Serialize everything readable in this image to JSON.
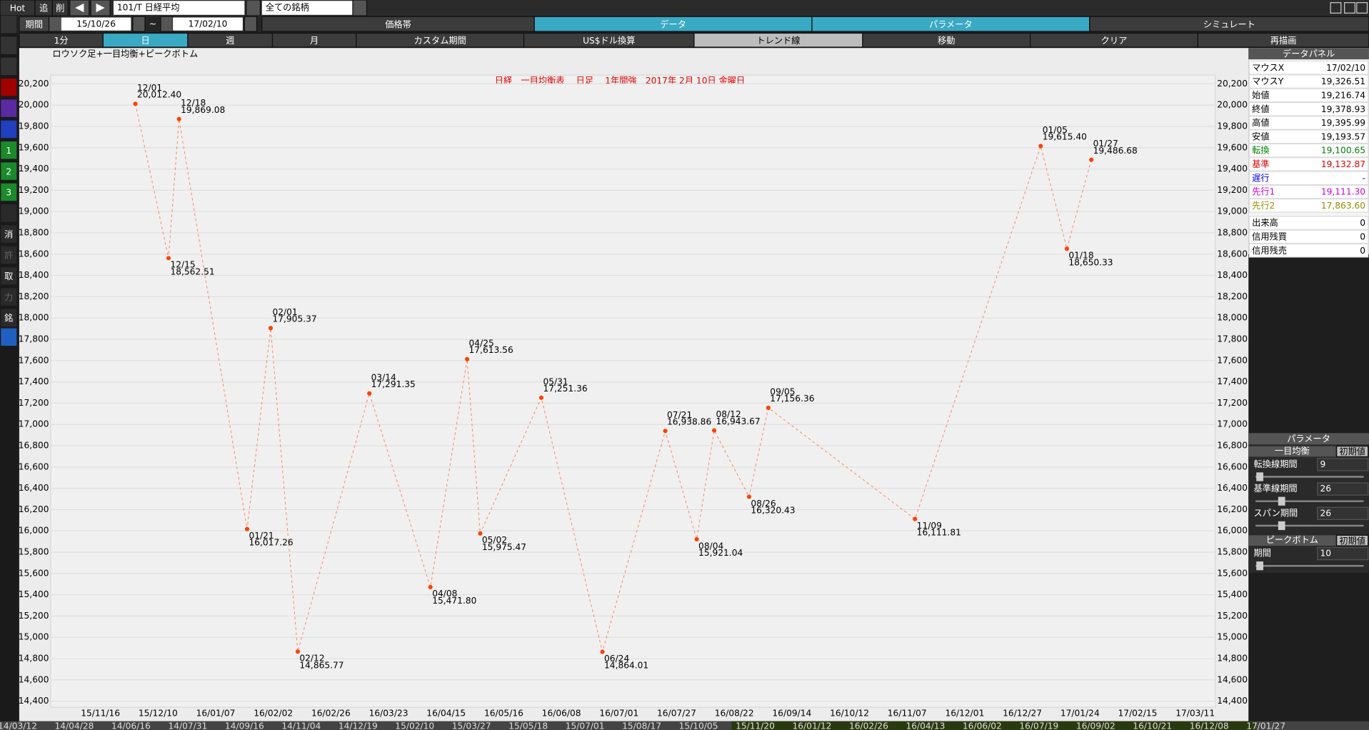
{
  "toolbar": {
    "hot": "Hot",
    "add": "追",
    "del": "削",
    "symbol": "101/T 日経平均",
    "filter": "全ての銘柄"
  },
  "period": {
    "label": "期間",
    "from": "15/10/26",
    "sep": "~",
    "to": "17/02/10"
  },
  "tabs": [
    "価格帯",
    "データ",
    "パラメータ",
    "シミュレート"
  ],
  "buttons": [
    "1分",
    "日",
    "週",
    "月",
    "カスタム期間",
    "US$ドル換算",
    "トレンド線",
    "移動",
    "クリア",
    "再描画"
  ],
  "sidebar": [
    "1",
    "2",
    "3",
    "消",
    "許",
    "取",
    "力",
    "銘"
  ],
  "chart_data": {
    "type": "line",
    "subtitle": "ロウソク足+一目均衡+ピークボトム",
    "title": "日経　一目均衡表　 日足　 1年間強　2017年 2月 10日 金曜日",
    "categories": [
      "12/01",
      "12/15",
      "12/18",
      "01/21",
      "02/01",
      "02/12",
      "03/14",
      "04/08",
      "04/25",
      "05/02",
      "05/31",
      "06/24",
      "07/21",
      "08/04",
      "08/12",
      "08/26",
      "09/05",
      "11/09",
      "01/05",
      "01/18",
      "01/27"
    ],
    "values": [
      20012.4,
      18562.51,
      19869.08,
      16017.26,
      17905.37,
      14865.77,
      17291.35,
      15471.8,
      17613.56,
      15975.47,
      17251.36,
      14864.01,
      16938.86,
      15921.04,
      16943.67,
      16320.43,
      17156.36,
      16111.81,
      19615.4,
      18650.33,
      19486.68
    ],
    "value_labels": [
      "20,012.40",
      "18,562.51",
      "19,869.08",
      "16,017.26",
      "17,905.37",
      "14,865.77",
      "17,291.35",
      "15,471.80",
      "17,613.56",
      "15,975.47",
      "17,251.36",
      "14,864.01",
      "16,938.86",
      "15,921.04",
      "16,943.67",
      "16,320.43",
      "17,156.36",
      "16,111.81",
      "19,615.40",
      "18,650.33",
      "19,486.68"
    ],
    "color": "#ff4000",
    "ylim": [
      14400,
      20200
    ],
    "yticks": [
      {
        "value": 14400,
        "label": "14,400"
      },
      {
        "value": 14600,
        "label": "14,600"
      },
      {
        "value": 14800,
        "label": "14,800"
      },
      {
        "value": 15000,
        "label": "15,000"
      },
      {
        "value": 15200,
        "label": "15,200"
      },
      {
        "value": 15400,
        "label": "15,400"
      },
      {
        "value": 15600,
        "label": "15,600"
      },
      {
        "value": 15800,
        "label": "15,800"
      },
      {
        "value": 16000,
        "label": "16,000"
      },
      {
        "value": 16200,
        "label": "16,200"
      },
      {
        "value": 16400,
        "label": "16,400"
      },
      {
        "value": 16600,
        "label": "16,600"
      },
      {
        "value": 16800,
        "label": "16,800"
      },
      {
        "value": 17000,
        "label": "17,000"
      },
      {
        "value": 17200,
        "label": "17,200"
      },
      {
        "value": 17400,
        "label": "17,400"
      },
      {
        "value": 17600,
        "label": "17,600"
      },
      {
        "value": 17800,
        "label": "17,800"
      },
      {
        "value": 18000,
        "label": "18,000"
      },
      {
        "value": 18200,
        "label": "18,200"
      },
      {
        "value": 18400,
        "label": "18,400"
      },
      {
        "value": 18600,
        "label": "18,600"
      },
      {
        "value": 18800,
        "label": "18,800"
      },
      {
        "value": 19000,
        "label": "19,000"
      },
      {
        "value": 19200,
        "label": "19,200"
      },
      {
        "value": 19400,
        "label": "19,400"
      },
      {
        "value": 19600,
        "label": "19,600"
      },
      {
        "value": 19800,
        "label": "19,800"
      },
      {
        "value": 20000,
        "label": "20,000"
      },
      {
        "value": 20200,
        "label": "20,200"
      }
    ],
    "x_labels": [
      "15/11/16",
      "15/12/10",
      "16/01/07",
      "16/02/02",
      "16/02/26",
      "16/03/23",
      "16/04/15",
      "16/05/16",
      "16/06/08",
      "16/07/01",
      "16/07/27",
      "16/08/22",
      "16/09/14",
      "16/10/12",
      "16/11/07",
      "16/12/01",
      "16/12/27",
      "17/01/24",
      "17/02/15",
      "17/03/11"
    ],
    "scroll_labels": [
      "14/03/12",
      "14/04/28",
      "14/06/16",
      "14/07/31",
      "14/09/16",
      "14/11/04",
      "14/12/19",
      "15/02/10",
      "15/03/27",
      "15/05/18",
      "15/07/01",
      "15/08/17",
      "15/10/05",
      "15/11/20",
      "16/01/12",
      "16/02/26",
      "16/04/13",
      "16/06/02",
      "16/07/19",
      "16/09/02",
      "16/10/21",
      "16/12/08",
      "17/01/27"
    ]
  },
  "data_panel": {
    "title": "データパネル",
    "rows": [
      {
        "label": "マウスX",
        "value": "17/02/10",
        "color": "#000000"
      },
      {
        "label": "マウスY",
        "value": "19,326.51",
        "color": "#000000"
      },
      {
        "label": "始値",
        "value": "19,216.74",
        "color": "#000000"
      },
      {
        "label": "終値",
        "value": "19,378.93",
        "color": "#000000"
      },
      {
        "label": "高値",
        "value": "19,395.99",
        "color": "#000000"
      },
      {
        "label": "安値",
        "value": "19,193.57",
        "color": "#000000"
      },
      {
        "label": "転換",
        "value": "19,100.65",
        "color": "#008000"
      },
      {
        "label": "基準",
        "value": "19,132.87",
        "color": "#e00000"
      },
      {
        "label": "遅行",
        "value": "-",
        "color": "#0000e0"
      },
      {
        "label": "先行1",
        "value": "19,111.30",
        "color": "#d000d0"
      },
      {
        "label": "先行2",
        "value": "17,863.60",
        "color": "#909000"
      },
      {
        "label": "出来高",
        "value": "0",
        "color": "#000000"
      },
      {
        "label": "信用残買",
        "value": "0",
        "color": "#000000"
      },
      {
        "label": "信用残売",
        "value": "0",
        "color": "#000000"
      }
    ]
  },
  "parameters": {
    "title": "パラメータ",
    "groups": [
      {
        "name": "一目均衡",
        "reset": "初期値",
        "items": [
          {
            "label": "転換線期間",
            "value": "9"
          },
          {
            "label": "基準線期間",
            "value": "26"
          },
          {
            "label": "スパン期間",
            "value": "26"
          }
        ]
      },
      {
        "name": "ピークボトム",
        "reset": "初期値",
        "items": [
          {
            "label": "期間",
            "value": "10"
          }
        ]
      }
    ]
  }
}
